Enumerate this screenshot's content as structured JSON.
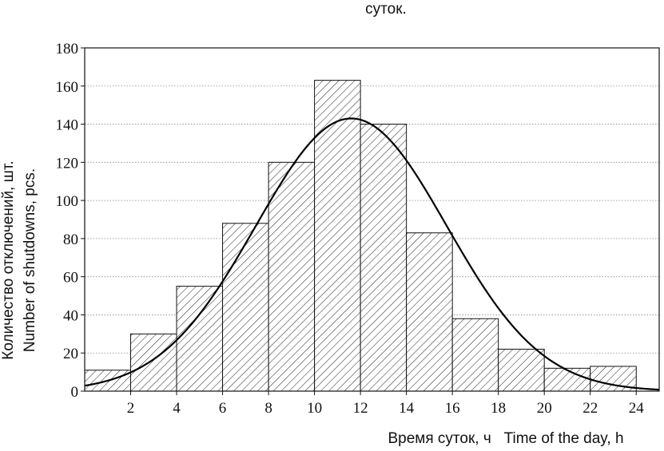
{
  "chart_data": {
    "type": "bar",
    "title": "суток.",
    "xlabel": "Время суток, ч   Time of the day, h",
    "ylabel": [
      "Количество отключений, шт.",
      "Number of shutdowns, pcs."
    ],
    "xlim": [
      0,
      25
    ],
    "ylim": [
      0,
      180
    ],
    "x_ticks": [
      "2",
      "4",
      "6",
      "8",
      "10",
      "12",
      "14",
      "16",
      "18",
      "20",
      "22",
      "24"
    ],
    "y_ticks": [
      "0",
      "20",
      "40",
      "60",
      "80",
      "100",
      "120",
      "140",
      "160",
      "180"
    ],
    "grid": true,
    "bins": [
      {
        "start": 0,
        "end": 2,
        "value": 11
      },
      {
        "start": 2,
        "end": 4,
        "value": 30
      },
      {
        "start": 4,
        "end": 6,
        "value": 55
      },
      {
        "start": 6,
        "end": 8,
        "value": 88
      },
      {
        "start": 8,
        "end": 10,
        "value": 120
      },
      {
        "start": 10,
        "end": 12,
        "value": 163
      },
      {
        "start": 12,
        "end": 14,
        "value": 140
      },
      {
        "start": 14,
        "end": 16,
        "value": 83
      },
      {
        "start": 16,
        "end": 18,
        "value": 38
      },
      {
        "start": 18,
        "end": 20,
        "value": 22
      },
      {
        "start": 20,
        "end": 22,
        "value": 12
      },
      {
        "start": 22,
        "end": 24,
        "value": 13
      }
    ],
    "fit_curve": {
      "type": "normal",
      "mean": 11.6,
      "std": 4.15,
      "peak": 143
    }
  }
}
